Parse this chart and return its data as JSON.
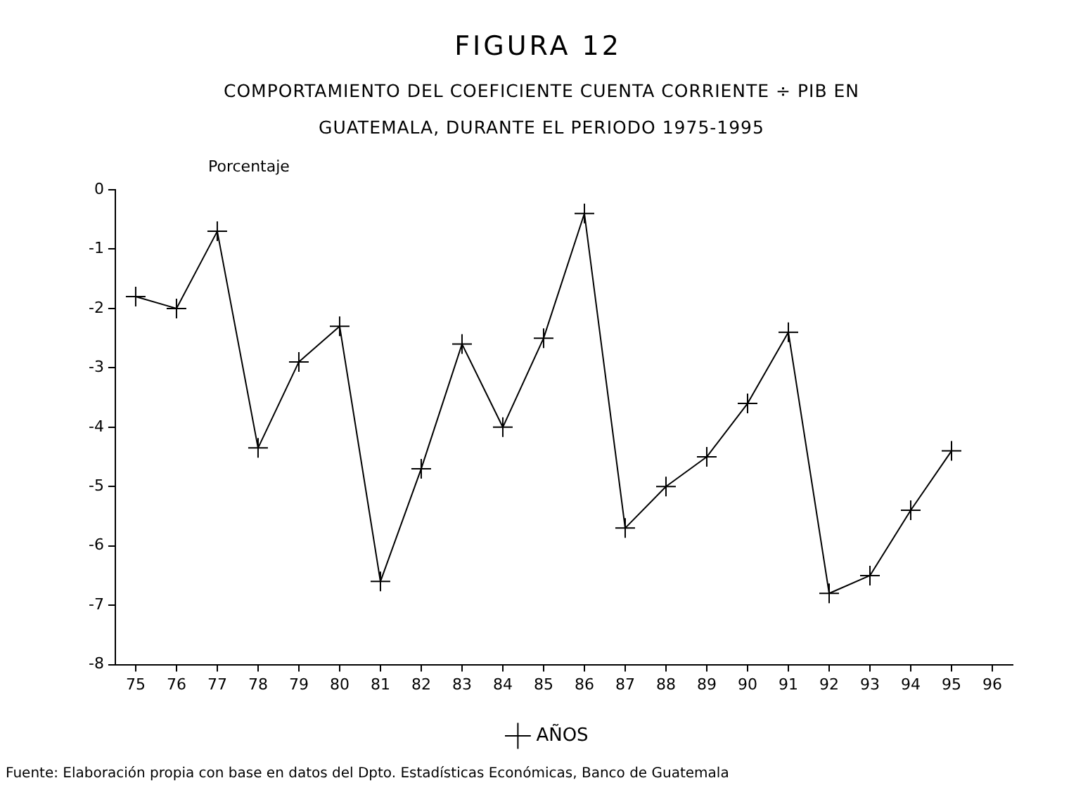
{
  "chart_data": {
    "type": "line",
    "title": "FIGURA 12",
    "subtitle": "COMPORTAMIENTO DEL COEFICIENTE  CUENTA CORRIENTE ÷ PIB EN GUATEMALA, DURANTE EL PERIODO 1975-1995",
    "ylabel": "Porcentaje",
    "categories": [
      "75",
      "76",
      "77",
      "78",
      "79",
      "80",
      "81",
      "82",
      "83",
      "84",
      "85",
      "86",
      "87",
      "88",
      "89",
      "90",
      "91",
      "92",
      "93",
      "94",
      "95",
      "96"
    ],
    "series": [
      {
        "name": "AÑOS",
        "color": "#000000",
        "values": [
          -1.8,
          -2.0,
          -0.7,
          -4.35,
          -2.9,
          -2.3,
          -6.6,
          -4.7,
          -2.6,
          -4.0,
          -2.5,
          -0.4,
          -5.7,
          -5.0,
          -4.5,
          -3.6,
          -2.4,
          -6.8,
          -6.5,
          -5.4,
          -4.4,
          null
        ]
      }
    ],
    "ylim": [
      -8,
      0
    ],
    "yticks": [
      -8,
      -7,
      -6,
      -5,
      -4,
      -3,
      -2,
      -1,
      0
    ],
    "grid": false,
    "legend": "bottom",
    "marker": "cross",
    "line_style": "solid",
    "annotations": [
      "Fuente: Elaboración propia con base en datos del Dpto. Estadísticas Económicas, Banco de Guatemala"
    ]
  }
}
